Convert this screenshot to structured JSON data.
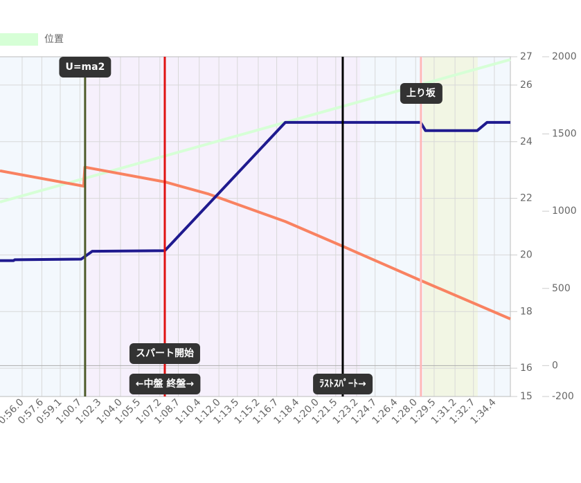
{
  "chart_data": {
    "type": "line",
    "legend": "top-left",
    "grid": true,
    "xlim": [
      54.2,
      95.7
    ],
    "xticks": [
      {
        "value": 56.0,
        "label": "0:56.0"
      },
      {
        "value": 57.6,
        "label": "0:57.6"
      },
      {
        "value": 59.1,
        "label": "0:59.1"
      },
      {
        "value": 60.7,
        "label": "1:00.7"
      },
      {
        "value": 62.3,
        "label": "1:02.3"
      },
      {
        "value": 64.0,
        "label": "1:04.0"
      },
      {
        "value": 65.5,
        "label": "1:05.5"
      },
      {
        "value": 67.2,
        "label": "1:07.2"
      },
      {
        "value": 68.7,
        "label": "1:08.7"
      },
      {
        "value": 70.4,
        "label": "1:10.4"
      },
      {
        "value": 72.0,
        "label": "1:12.0"
      },
      {
        "value": 73.5,
        "label": "1:13.5"
      },
      {
        "value": 75.2,
        "label": "1:15.2"
      },
      {
        "value": 76.7,
        "label": "1:16.7"
      },
      {
        "value": 78.4,
        "label": "1:18.4"
      },
      {
        "value": 80.0,
        "label": "1:20.0"
      },
      {
        "value": 81.5,
        "label": "1:21.5"
      },
      {
        "value": 83.2,
        "label": "1:23.2"
      },
      {
        "value": 84.7,
        "label": "1:24.7"
      },
      {
        "value": 86.4,
        "label": "1:26.4"
      },
      {
        "value": 88.0,
        "label": "1:28.0"
      },
      {
        "value": 89.5,
        "label": "1:29.5"
      },
      {
        "value": 91.2,
        "label": "1:31.2"
      },
      {
        "value": 92.7,
        "label": "1:32.7"
      },
      {
        "value": 94.4,
        "label": "1:34.4"
      }
    ],
    "ylim": [
      15,
      27
    ],
    "yticks": [
      15,
      16,
      18,
      20,
      22,
      24,
      26,
      27
    ],
    "y2lim": [
      -200,
      2000
    ],
    "y2ticks": [
      -200,
      0,
      500,
      1000,
      1500,
      2000
    ],
    "bands": [
      {
        "from": 54.2,
        "to": 61.1,
        "color": "#f3f8fd"
      },
      {
        "from": 61.1,
        "to": 83.5,
        "color": "#f6f0fc"
      },
      {
        "from": 83.5,
        "to": 88.6,
        "color": "#f3f8fd"
      },
      {
        "from": 88.6,
        "to": 93.05,
        "color": "#f2f6e4"
      },
      {
        "from": 93.05,
        "to": 95.7,
        "color": "#f3f8fd"
      }
    ],
    "series": [
      {
        "name": "位置",
        "color": "#d6ffd6",
        "x": [
          54.2,
          95.7
        ],
        "values": [
          21.87,
          26.9
        ]
      },
      {
        "color": "#f98261",
        "x": [
          54.2,
          61.0,
          61.1,
          67.6,
          71.1,
          77.4,
          82.1,
          88.4,
          95.7
        ],
        "values": [
          22.97,
          22.43,
          23.1,
          22.58,
          22.16,
          21.18,
          20.3,
          19.1,
          17.74
        ]
      },
      {
        "color": "#1f1a8f",
        "x": [
          54.2,
          55.3,
          55.4,
          60.8,
          61.7,
          67.6,
          77.4,
          88.4,
          88.8,
          93.0,
          93.8,
          95.7
        ],
        "values": [
          19.8,
          19.8,
          19.83,
          19.85,
          20.13,
          20.15,
          24.68,
          24.68,
          24.39,
          24.39,
          24.68,
          24.68
        ]
      }
    ],
    "markers": [
      {
        "x": 61.12,
        "color": "#4d5a2a",
        "labels": [
          "U=ma2"
        ]
      },
      {
        "x": 67.6,
        "color": "#e01010",
        "labels": [
          "スパート開始",
          "←中盤 終盤→"
        ]
      },
      {
        "x": 82.07,
        "color": "#000000",
        "labels": [
          "ﾗｽﾄｽﾊﾟｰﾄ→"
        ]
      },
      {
        "x": 88.43,
        "color": "#ffb8b8",
        "labels": [
          "上り坂"
        ]
      }
    ]
  }
}
